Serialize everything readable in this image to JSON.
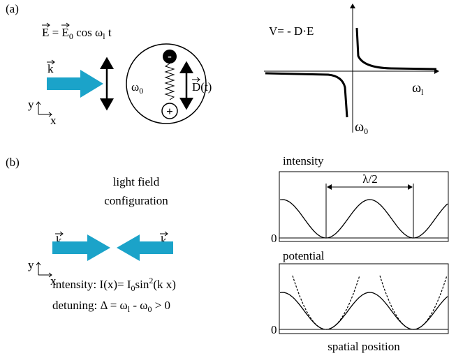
{
  "panel_a": {
    "label": "(a)",
    "field": [
      "E",
      " = E",
      "0",
      " cos ω",
      "l",
      " t"
    ],
    "k": "k",
    "omega0": [
      "ω",
      "0"
    ],
    "dipole": "D(t)",
    "minus": "-",
    "plus": "+",
    "axis_y": "y",
    "axis_x": "x",
    "potential": [
      "V= - ",
      "D",
      "·",
      "E"
    ],
    "omega_l_axis": [
      "ω",
      "l"
    ],
    "omega0_axis": [
      "ω",
      "0"
    ]
  },
  "panel_b": {
    "label": "(b)",
    "title": [
      "light field",
      "configuration"
    ],
    "k_left": "k",
    "k_right": "k",
    "axis_y": "y",
    "axis_x": "x",
    "intensity_formula": [
      "intensity: I(x)= I",
      "0",
      "sin",
      "2",
      "(k x)"
    ],
    "detuning": [
      "detuning: Δ = ω",
      "l",
      " - ω",
      "0",
      "  > 0"
    ],
    "intensity_plot": {
      "title": "intensity",
      "zero": "0",
      "annotation": "λ/2"
    },
    "potential_plot": {
      "title": "potential",
      "zero": "0",
      "xlabel": "spatial position"
    }
  }
}
